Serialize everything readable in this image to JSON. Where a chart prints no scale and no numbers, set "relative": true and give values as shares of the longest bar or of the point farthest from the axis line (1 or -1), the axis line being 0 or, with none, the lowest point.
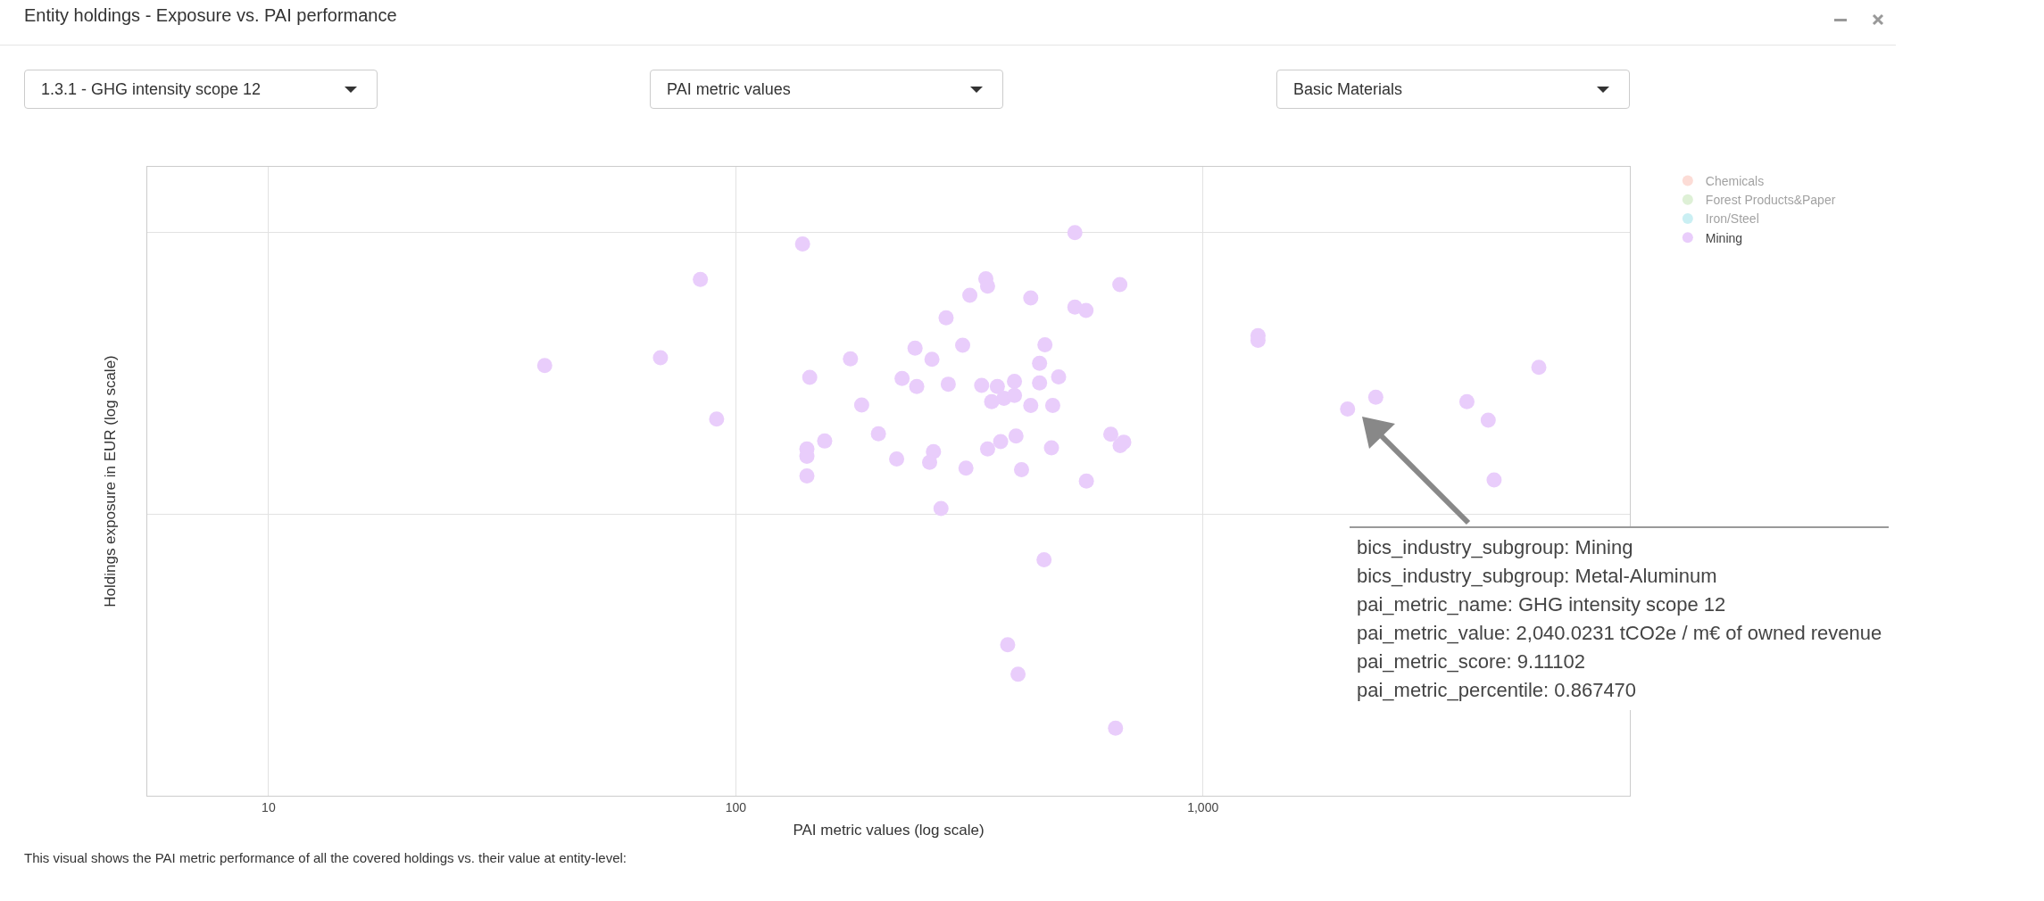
{
  "chart_data": {
    "type": "scatter",
    "title": "Entity holdings - Exposure vs. PAI performance",
    "xlabel": "PAI metric values (log scale)",
    "ylabel": "Holdings exposure in EUR (log scale)",
    "log": "x",
    "relative": true,
    "grid": true,
    "legend": "top right",
    "marker": "circle",
    "xlim": [
      5.5,
      8200
    ],
    "xticks": [
      10,
      100,
      {
        "value": 1000,
        "label": "1,000"
      }
    ],
    "x": [
      39,
      69,
      84,
      91,
      139,
      144,
      142,
      142,
      142,
      155,
      176,
      186,
      202,
      221,
      227,
      242,
      244,
      263,
      265,
      260,
      275,
      282,
      285,
      306,
      311,
      317,
      343,
      346,
      336,
      363,
      353,
      375,
      395,
      395,
      346,
      369,
      398,
      382,
      402,
      409,
      428,
      428,
      447,
      447,
      459,
      457,
      474,
      477,
      491,
      532,
      532,
      562,
      563,
      635,
      664,
      665,
      677,
      650,
      1312,
      1312,
      2040,
      2344,
      3673,
      4080,
      5236,
      4200
    ],
    "series": [
      {
        "name": "Chemicals",
        "color": "#f9b9ad",
        "values": [
          null,
          null,
          null,
          null,
          null,
          null,
          null,
          null,
          null,
          null,
          null,
          null,
          null,
          null,
          null,
          null,
          null,
          null,
          null,
          null,
          null,
          null,
          null,
          null,
          null,
          null,
          null,
          null,
          null,
          null,
          null,
          null,
          null,
          null,
          null,
          null,
          null,
          null,
          null,
          null,
          null,
          null,
          null,
          null,
          null,
          null,
          null,
          null,
          null,
          null,
          null,
          null,
          null,
          null,
          null,
          null,
          null,
          null,
          null,
          null,
          null,
          null,
          null,
          null,
          null,
          null
        ]
      },
      {
        "name": "Forest Products&Paper",
        "color": "#bde2ae",
        "values": [
          null,
          null,
          null,
          null,
          null,
          null,
          null,
          null,
          null,
          null,
          null,
          null,
          null,
          null,
          null,
          null,
          null,
          null,
          null,
          null,
          null,
          null,
          null,
          null,
          null,
          null,
          null,
          null,
          null,
          null,
          null,
          null,
          null,
          null,
          null,
          null,
          null,
          null,
          null,
          null,
          null,
          null,
          null,
          null,
          null,
          null,
          null,
          null,
          null,
          null,
          null,
          null,
          null,
          null,
          null,
          null,
          null,
          null,
          null,
          null,
          null,
          null,
          null,
          null,
          null,
          null
        ]
      },
      {
        "name": "Iron/Steel",
        "color": "#96e0e8",
        "values": [
          null,
          null,
          null,
          null,
          null,
          null,
          null,
          null,
          null,
          null,
          null,
          null,
          null,
          null,
          null,
          null,
          null,
          null,
          null,
          null,
          null,
          null,
          null,
          null,
          null,
          null,
          null,
          null,
          null,
          null,
          null,
          null,
          null,
          null,
          null,
          null,
          null,
          null,
          null,
          null,
          null,
          null,
          null,
          null,
          null,
          null,
          null,
          null,
          null,
          null,
          null,
          null,
          null,
          null,
          null,
          null,
          null,
          null,
          null,
          null,
          null,
          null,
          null,
          null,
          null,
          null
        ]
      },
      {
        "name": "Mining",
        "color": "#e9cdfb",
        "values": [
          0.764,
          0.778,
          0.917,
          0.669,
          0.98,
          0.743,
          0.616,
          0.603,
          0.568,
          0.63,
          0.776,
          0.694,
          0.643,
          0.598,
          0.741,
          0.795,
          0.727,
          0.775,
          0.611,
          0.592,
          0.51,
          0.849,
          0.731,
          0.8,
          0.582,
          0.889,
          0.918,
          0.905,
          0.729,
          0.727,
          0.7,
          0.706,
          0.736,
          0.711,
          0.616,
          0.629,
          0.639,
          0.268,
          0.216,
          0.579,
          0.884,
          0.693,
          0.768,
          0.733,
          0.801,
          0.419,
          0.618,
          0.693,
          0.744,
          1.0,
          0.868,
          0.862,
          0.559,
          0.642,
          0.908,
          0.622,
          0.628,
          0.12,
          0.817,
          0.809,
          0.687,
          0.708,
          0.7,
          0.667,
          0.761,
          0.561
        ]
      }
    ],
    "annotations": [
      "1.3.1 - GHG intensity scope 12",
      "PAI metric values",
      "Basic Materials",
      "This visual shows the PAI metric performance of all the covered holdings vs. their value at entity-level:",
      "bics_industry_subgroup: Mining\nbics_industry_subgroup: Metal-Aluminum\npai_metric_name: GHG intensity scope 12\npai_metric_value: 2,040.0231 tCO2e / m€ of owned revenue\npai_metric_score: 9.11102\npai_metric_percentile: 0.867470"
    ]
  }
}
